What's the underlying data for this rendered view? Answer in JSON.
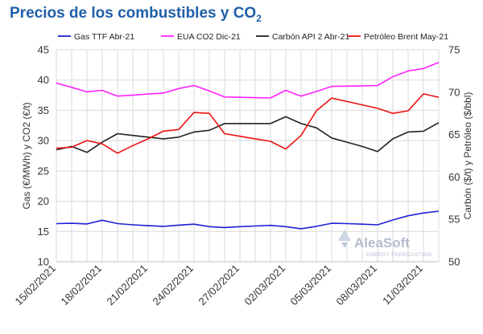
{
  "chart_data": {
    "type": "line",
    "title": "Precios de los combustibles y CO",
    "title_subscript": "2",
    "ylabel_left": "Gas (€/MWh) y CO2 (€/t)",
    "ylabel_right": "Carbón ($/t) y Petróleo ($/bbl)",
    "ylim_left": [
      10,
      45
    ],
    "ylim_right": [
      50,
      75
    ],
    "yticks_left": [
      "10",
      "15",
      "20",
      "25",
      "30",
      "35",
      "40",
      "45"
    ],
    "yticks_right": [
      "50",
      "55",
      "60",
      "65",
      "70",
      "75"
    ],
    "grid": true,
    "legend_position": "top",
    "x_tick_labels": [
      "15/02/2021",
      "18/02/2021",
      "21/02/2021",
      "24/02/2021",
      "27/02/2021",
      "02/03/2021",
      "05/03/2021",
      "08/03/2021",
      "11/03/2021"
    ],
    "x": [
      "15/02",
      "16/02",
      "17/02",
      "18/02",
      "19/02",
      "20/02",
      "21/02",
      "22/02",
      "23/02",
      "24/02",
      "25/02",
      "26/02",
      "27/02",
      "28/02",
      "01/03",
      "02/03",
      "03/03",
      "04/03",
      "05/03",
      "06/03",
      "07/03",
      "08/03",
      "09/03",
      "10/03",
      "11/03",
      "12/03"
    ],
    "series": [
      {
        "name": "Gas TTF Abr-21",
        "color": "#1f1fd6",
        "axis": "left",
        "values": [
          16.3,
          16.35,
          16.25,
          16.85,
          16.3,
          16.1,
          15.95,
          15.85,
          16.05,
          16.2,
          15.8,
          15.65,
          15.8,
          15.9,
          16.0,
          15.8,
          15.45,
          15.85,
          16.35,
          16.3,
          16.2,
          16.1,
          16.9,
          17.6,
          18.05,
          18.35
        ]
      },
      {
        "name": "EUA CO2 Dic-21",
        "color": "#ff22ff",
        "axis": "left",
        "values": [
          39.5,
          38.8,
          38.05,
          38.3,
          37.35,
          37.5,
          37.7,
          37.85,
          38.6,
          39.1,
          38.2,
          37.2,
          37.15,
          37.1,
          37.05,
          38.3,
          37.35,
          38.1,
          38.95,
          39.0,
          39.05,
          39.1,
          40.55,
          41.5,
          41.9,
          42.9
        ]
      },
      {
        "name": "Carbón API 2 Abr-21",
        "color": "#222222",
        "axis": "right",
        "values": [
          63.2,
          63.6,
          62.9,
          64.1,
          65.1,
          64.9,
          64.7,
          64.5,
          64.7,
          65.3,
          65.5,
          66.3,
          66.3,
          66.3,
          66.3,
          67.1,
          66.3,
          65.8,
          64.6,
          64.1,
          63.6,
          63.0,
          64.5,
          65.3,
          65.4,
          66.4
        ]
      },
      {
        "name": "Petróleo Brent May-21",
        "color": "#ee1111",
        "axis": "right",
        "values": [
          63.4,
          63.5,
          64.3,
          63.9,
          62.8,
          63.7,
          64.5,
          65.4,
          65.6,
          67.6,
          67.5,
          65.1,
          64.8,
          64.5,
          64.2,
          63.3,
          64.9,
          67.8,
          69.3,
          68.9,
          68.5,
          68.1,
          67.5,
          67.8,
          69.8,
          69.4
        ]
      }
    ]
  },
  "watermark": {
    "name": "AleaSoft",
    "subtitle": "ENERGY FORECASTING"
  }
}
